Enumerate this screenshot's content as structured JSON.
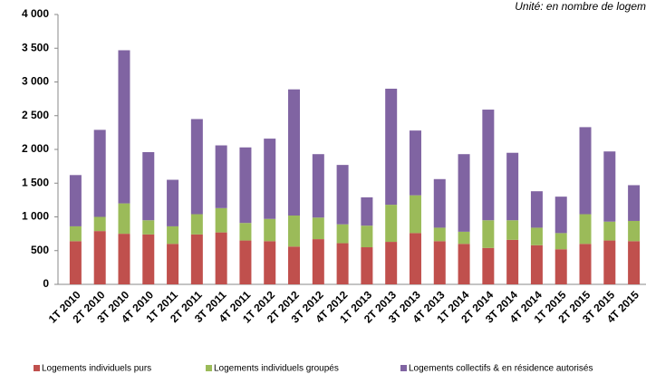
{
  "chart_data": {
    "type": "stacked_bar",
    "annotation": "Unité: en nombre de logem",
    "categories": [
      "1T 2010",
      "2T 2010",
      "3T 2010",
      "4T 2010",
      "1T 2011",
      "2T 2011",
      "3T 2011",
      "4T 2011",
      "1T 2012",
      "2T 2012",
      "3T 2012",
      "4T 2012",
      "1T 2013",
      "2T 2013",
      "3T 2013",
      "4T 2013",
      "1T 2014",
      "2T 2014",
      "3T 2014",
      "4T 2014",
      "1T 2015",
      "2T 2015",
      "3T 2015",
      "4T 2015"
    ],
    "series": [
      {
        "name": "Logements individuels purs",
        "color": "#c0504d",
        "values": [
          640,
          790,
          750,
          740,
          600,
          740,
          770,
          650,
          640,
          560,
          670,
          610,
          550,
          630,
          760,
          640,
          600,
          540,
          660,
          580,
          520,
          600,
          650,
          640
        ]
      },
      {
        "name": "Logements individuels groupés",
        "color": "#9bbb59",
        "values": [
          220,
          210,
          450,
          210,
          260,
          300,
          360,
          260,
          330,
          460,
          320,
          280,
          320,
          550,
          560,
          200,
          180,
          410,
          290,
          260,
          240,
          440,
          280,
          300
        ]
      },
      {
        "name": "Logements collectifs & en résidence autorisés",
        "color": "#8064a2",
        "values": [
          760,
          1290,
          2270,
          1010,
          690,
          1410,
          930,
          1120,
          1190,
          1870,
          940,
          880,
          420,
          1720,
          960,
          720,
          1150,
          1640,
          1000,
          540,
          540,
          1290,
          1040,
          530
        ]
      }
    ],
    "ylim": [
      0,
      4000
    ],
    "yticks": [
      0,
      500,
      {
        "value": 1000,
        "label": "1 000"
      },
      {
        "value": 1500,
        "label": "1 500"
      },
      {
        "value": 2000,
        "label": "2 000"
      },
      {
        "value": 2500,
        "label": "2 500"
      },
      {
        "value": 3000,
        "label": "3 000"
      },
      {
        "value": 3500,
        "label": "3 500"
      },
      {
        "value": 4000,
        "label": "4 000"
      }
    ],
    "grid": false
  }
}
